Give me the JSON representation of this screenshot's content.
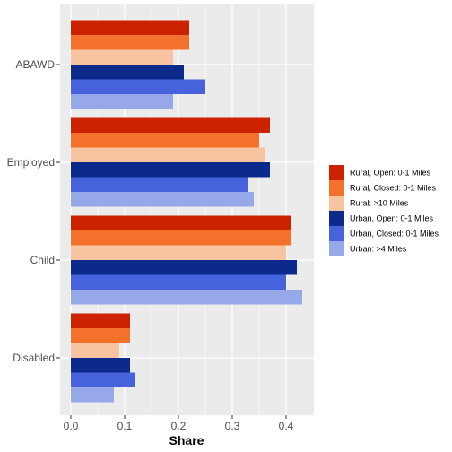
{
  "chart_data": {
    "type": "bar",
    "orientation": "horizontal",
    "title": "",
    "xlabel": "Share",
    "ylabel": "",
    "xlim": [
      0,
      0.44
    ],
    "x_ticks": [
      "0.0",
      "0.1",
      "0.2",
      "0.3",
      "0.4"
    ],
    "x_tick_values": [
      0.0,
      0.1,
      0.2,
      0.3,
      0.4
    ],
    "categories": [
      "ABAWD",
      "Employed",
      "Child",
      "Disabled"
    ],
    "legend_position": "right",
    "series": [
      {
        "name": "Rural, Open: 0-1 Miles",
        "color": "#CC2200",
        "values": [
          0.22,
          0.37,
          0.41,
          0.11
        ]
      },
      {
        "name": "Rural, Closed: 0-1 Miles",
        "color": "#F4712B",
        "values": [
          0.22,
          0.35,
          0.41,
          0.11
        ]
      },
      {
        "name": "Rural: >10 Miles",
        "color": "#F8C3A0",
        "values": [
          0.19,
          0.36,
          0.4,
          0.09
        ]
      },
      {
        "name": "Urban, Open: 0-1 Miles",
        "color": "#0C2A8C",
        "values": [
          0.21,
          0.37,
          0.42,
          0.11
        ]
      },
      {
        "name": "Urban, Closed: 0-1 Miles",
        "color": "#4663DD",
        "values": [
          0.25,
          0.33,
          0.4,
          0.12
        ]
      },
      {
        "name": "Urban: >4 Miles",
        "color": "#97A8E8",
        "values": [
          0.19,
          0.34,
          0.43,
          0.08
        ]
      }
    ]
  },
  "colors": {
    "panel_background": "#EBEBEB",
    "grid": "#FFFFFF",
    "tick": "#333333"
  }
}
